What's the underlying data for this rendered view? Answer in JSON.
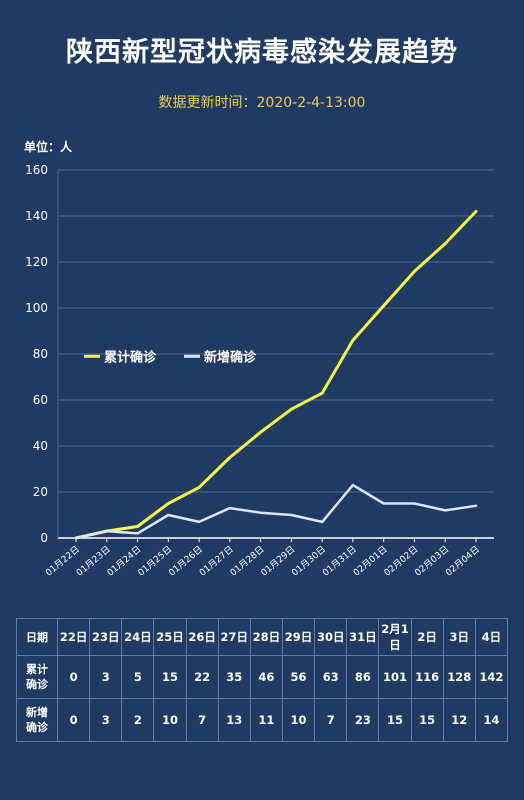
{
  "title": "陕西新型冠状病毒感染发展趋势",
  "update_time": "数据更新时间：2020-2-4-13:00",
  "unit_label": "单位：人",
  "chart_data": {
    "type": "line",
    "x": [
      "01月22日",
      "01月23日",
      "01月24日",
      "01月25日",
      "01月26日",
      "01月27日",
      "01月28日",
      "01月29日",
      "01月30日",
      "01月31日",
      "02月01日",
      "02月02日",
      "02月03日",
      "02月04日"
    ],
    "series": [
      {
        "name": "累计确诊",
        "color": "#f5f542",
        "values": [
          0,
          3,
          5,
          15,
          22,
          35,
          46,
          56,
          63,
          86,
          101,
          116,
          128,
          142
        ]
      },
      {
        "name": "新增确诊",
        "color": "#dbe6ff",
        "values": [
          0,
          3,
          2,
          10,
          7,
          13,
          11,
          10,
          7,
          23,
          15,
          15,
          12,
          14
        ]
      }
    ],
    "ylim": [
      0,
      160
    ],
    "yticks": [
      0,
      20,
      40,
      60,
      80,
      100,
      120,
      140,
      160
    ],
    "grid": true,
    "legend": "middle-left"
  },
  "table": {
    "header_label": "日期",
    "dates": [
      "22日",
      "23日",
      "24日",
      "25日",
      "26日",
      "27日",
      "28日",
      "29日",
      "30日",
      "31日",
      "2月1日",
      "2日",
      "3日",
      "4日"
    ],
    "rows": [
      {
        "label": "累计确诊",
        "values": [
          "0",
          "3",
          "5",
          "15",
          "22",
          "35",
          "46",
          "56",
          "63",
          "86",
          "101",
          "116",
          "128",
          "142"
        ]
      },
      {
        "label": "新增确诊",
        "values": [
          "0",
          "3",
          "2",
          "10",
          "7",
          "13",
          "11",
          "10",
          "7",
          "23",
          "15",
          "15",
          "12",
          "14"
        ]
      }
    ]
  }
}
